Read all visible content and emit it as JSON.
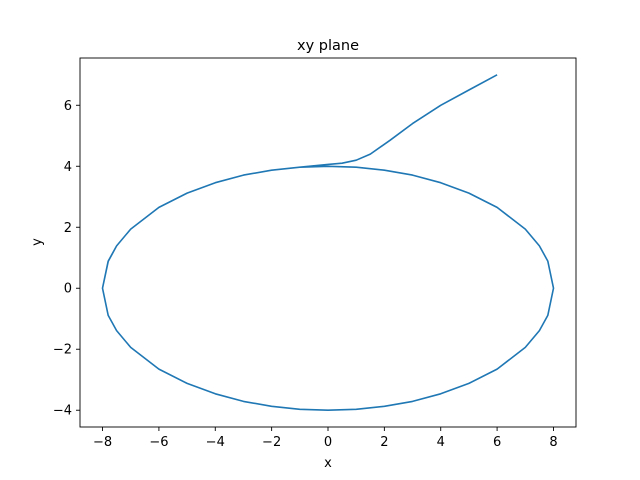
{
  "chart_data": {
    "type": "line",
    "title": "xy plane",
    "xlabel": "x",
    "ylabel": "y",
    "xlim": [
      -8.8,
      8.8
    ],
    "ylim": [
      -4.55,
      7.55
    ],
    "xticks": [
      -8,
      -6,
      -4,
      -2,
      0,
      2,
      4,
      6,
      8
    ],
    "yticks": [
      -4,
      -2,
      0,
      2,
      4,
      6
    ],
    "grid": false,
    "line_color": "#1f77b4",
    "series": [
      {
        "x": [
          6.0,
          5.0,
          4.0,
          3.0,
          2.2,
          1.5,
          1.0,
          0.5,
          0.0,
          -1.0,
          -2.0,
          -3.0,
          -4.0,
          -5.0,
          -6.0,
          -7.0,
          -7.5,
          -7.8,
          -8.0,
          -7.8,
          -7.5,
          -7.0,
          -6.0,
          -5.0,
          -4.0,
          -3.0,
          -2.0,
          -1.0,
          0.0,
          1.0,
          2.0,
          3.0,
          4.0,
          5.0,
          6.0,
          7.0,
          7.5,
          7.8,
          8.0,
          7.8,
          7.5,
          7.0,
          6.0,
          5.0,
          4.0,
          3.0,
          2.0,
          1.0,
          0.0,
          -1.0,
          -2.0,
          -3.0,
          -4.0,
          -5.0,
          -6.0,
          -7.0,
          -7.5,
          -7.8,
          -8.0,
          -7.8,
          -7.5,
          -7.0,
          -6.0,
          -5.0,
          -4.0,
          -3.0,
          -2.0,
          -1.0,
          0.0
        ],
        "y": [
          7.0,
          6.5,
          6.0,
          5.4,
          4.85,
          4.4,
          4.2,
          4.1,
          4.06,
          3.97,
          3.87,
          3.71,
          3.46,
          3.12,
          2.65,
          1.94,
          1.39,
          0.88,
          0.0,
          -0.89,
          -1.39,
          -1.94,
          -2.65,
          -3.12,
          -3.46,
          -3.71,
          -3.87,
          -3.97,
          -4.0,
          -3.97,
          -3.87,
          -3.71,
          -3.46,
          -3.12,
          -2.65,
          -1.94,
          -1.39,
          -0.89,
          0.0,
          0.89,
          1.39,
          1.94,
          2.65,
          3.12,
          3.46,
          3.71,
          3.87,
          3.97,
          4.0,
          3.97,
          3.87,
          3.71,
          3.46,
          3.12,
          2.65,
          1.94,
          1.39,
          0.89,
          0.0,
          -0.89,
          -1.39,
          -1.94,
          -2.65,
          -3.12,
          -3.46,
          -3.71,
          -3.87,
          -3.97,
          -4.0
        ]
      }
    ]
  }
}
